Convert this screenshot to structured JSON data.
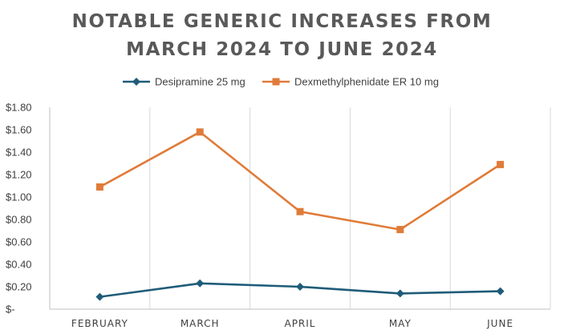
{
  "chart_data": {
    "type": "line",
    "title": "NOTABLE GENERIC INCREASES FROM MARCH 2024 TO JUNE 2024",
    "title_lines": [
      "NOTABLE GENERIC INCREASES FROM",
      "MARCH 2024 TO JUNE 2024"
    ],
    "categories": [
      "FEBRUARY",
      "MARCH",
      "APRIL",
      "MAY",
      "JUNE"
    ],
    "ylim": [
      0,
      1.8
    ],
    "yticks": [
      0,
      0.2,
      0.4,
      0.6,
      0.8,
      1.0,
      1.2,
      1.4,
      1.6,
      1.8
    ],
    "ytick_labels": [
      "$-",
      "$0.20",
      "$0.40",
      "$0.60",
      "$0.80",
      "$1.00",
      "$1.20",
      "$1.40",
      "$1.60",
      "$1.80"
    ],
    "legend_position": "top",
    "grid": "vertical",
    "series": [
      {
        "name": "Desipramine 25 mg",
        "color": "#1f5c78",
        "marker": "diamond",
        "values": [
          0.11,
          0.23,
          0.2,
          0.14,
          0.16
        ]
      },
      {
        "name": "Dexmethylphenidate ER 10 mg",
        "color": "#e07b39",
        "marker": "square",
        "values": [
          1.09,
          1.58,
          0.87,
          0.71,
          1.29
        ]
      }
    ]
  }
}
